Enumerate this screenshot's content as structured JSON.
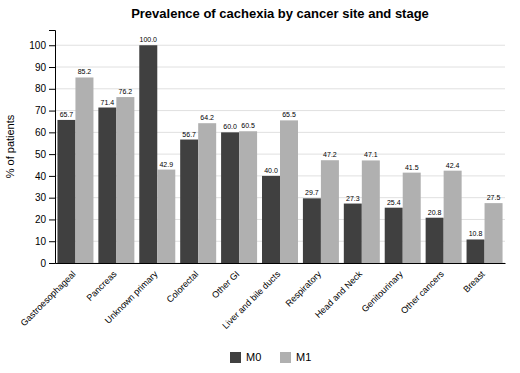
{
  "chart_data": {
    "type": "bar",
    "title": "Prevalence of cachexia by cancer site and stage",
    "ylabel": "% of patients",
    "categories": [
      "Gastroesophageal",
      "Pancreas",
      "Unknown primary",
      "Colorectal",
      "Other GI",
      "Liver and bile ducts",
      "Respiratory",
      "Head and Neck",
      "Genitourinary",
      "Other cancers",
      "Breast"
    ],
    "series": [
      {
        "name": "M0",
        "color": "#404040",
        "values": [
          65.7,
          71.4,
          100.0,
          56.7,
          60.0,
          40.0,
          29.7,
          27.3,
          25.4,
          20.8,
          10.8
        ],
        "value_labels": [
          "65.7",
          "71.4",
          "100.0",
          "56.7",
          "60.0",
          "40.0",
          "29.7",
          "27.3",
          "25.4",
          "20.8",
          "10.8"
        ]
      },
      {
        "name": "M1",
        "color": "#b0b0b0",
        "values": [
          85.2,
          76.2,
          42.9,
          64.2,
          60.5,
          65.5,
          47.2,
          47.1,
          41.5,
          42.4,
          27.5
        ]
      }
    ],
    "ylim": [
      0,
      107
    ],
    "yticks": [
      0,
      10,
      20,
      30,
      40,
      50,
      60,
      70,
      80,
      90,
      100
    ],
    "grid": true,
    "data_labels": true,
    "legend": "bottom"
  }
}
